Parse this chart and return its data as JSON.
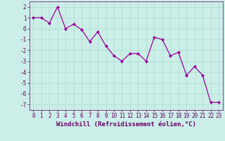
{
  "x": [
    0,
    1,
    2,
    3,
    4,
    5,
    6,
    7,
    8,
    9,
    10,
    11,
    12,
    13,
    14,
    15,
    16,
    17,
    18,
    19,
    20,
    21,
    22,
    23
  ],
  "y": [
    1.0,
    1.0,
    0.5,
    2.0,
    0.0,
    0.4,
    -0.1,
    -1.2,
    -0.3,
    -1.6,
    -2.5,
    -3.0,
    -2.3,
    -2.3,
    -3.0,
    -0.8,
    -1.0,
    -2.5,
    -2.2,
    -4.3,
    -3.5,
    -4.3,
    -6.8,
    -6.8
  ],
  "line_color": "#990099",
  "marker": "D",
  "markersize": 2.0,
  "linewidth": 0.9,
  "xlabel": "Windchill (Refroidissement éolien,°C)",
  "xlabel_fontsize": 6.5,
  "xlabel_color": "#660066",
  "background_color": "#cceee8",
  "grid_color": "#aaddcc",
  "grid_linewidth": 0.5,
  "xlim": [
    -0.5,
    23.5
  ],
  "ylim": [
    -7.5,
    2.5
  ],
  "yticks": [
    2,
    1,
    0,
    -1,
    -2,
    -3,
    -4,
    -5,
    -6,
    -7
  ],
  "xticks": [
    0,
    1,
    2,
    3,
    4,
    5,
    6,
    7,
    8,
    9,
    10,
    11,
    12,
    13,
    14,
    15,
    16,
    17,
    18,
    19,
    20,
    21,
    22,
    23
  ],
  "tick_fontsize": 5.5,
  "tick_color": "#660066",
  "spine_color": "#660066"
}
